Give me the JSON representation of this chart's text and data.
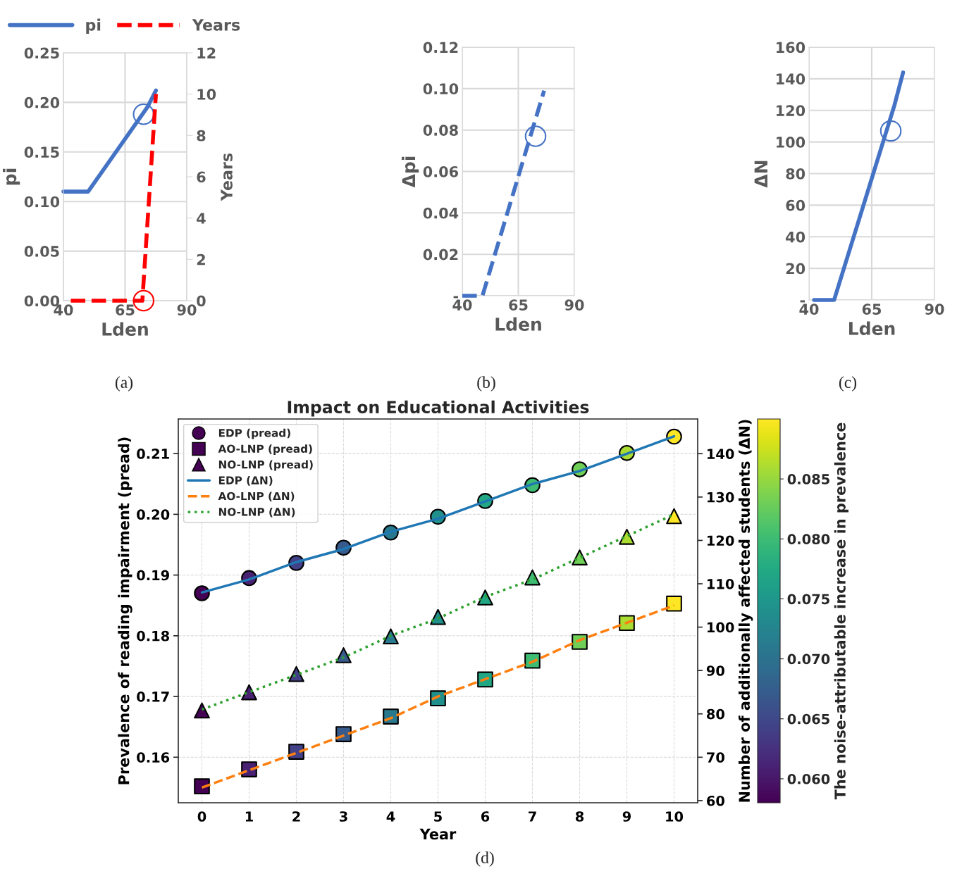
{
  "chart_data": [
    {
      "type": "line",
      "xlabel": "Lden",
      "ylabel": "pi",
      "y2label": "Years",
      "xlim": [
        40,
        90
      ],
      "xticks": [
        40,
        65,
        90
      ],
      "ylim": [
        0,
        0.25
      ],
      "yticks": [
        {
          "value": 0,
          "label": "0.00"
        },
        0.05,
        {
          "value": 0.1,
          "label": "0.10"
        },
        0.15,
        {
          "value": 0.2,
          "label": "0.20"
        },
        0.25
      ],
      "y2lim": [
        0,
        12
      ],
      "y2ticks": [
        0,
        2,
        4,
        6,
        8,
        10,
        12
      ],
      "grid": true,
      "legend": "top",
      "annotations": [
        "(a)"
      ],
      "series": [
        {
          "name": "pi",
          "type": "line",
          "color": "#4472c4",
          "line_style": "solid",
          "x": [
            40,
            50,
            74,
            77.5
          ],
          "values": [
            0.11,
            0.11,
            0.195,
            0.212
          ]
        },
        {
          "name": "Years",
          "type": "line",
          "axis": "y2",
          "color": "#ff0000",
          "line_style": "dashed",
          "x": [
            43,
            72,
            77.5
          ],
          "values": [
            0,
            0,
            10
          ]
        },
        {
          "type": "scatter",
          "marker": "circle",
          "color": "#4472c4",
          "x": [
            72.5
          ],
          "values": [
            0.188
          ]
        },
        {
          "type": "scatter",
          "axis": "y2",
          "marker": "circle",
          "color": "#ff0000",
          "x": [
            72.5
          ],
          "values": [
            0
          ]
        }
      ]
    },
    {
      "type": "line",
      "xlabel": "Lden",
      "ylabel": "Δpi",
      "xlim": [
        40,
        90
      ],
      "xticks": [
        40,
        65,
        90
      ],
      "ylim": [
        0,
        0.12
      ],
      "yticks": [
        {
          "value": 0,
          "label": "-"
        },
        0.02,
        0.04,
        0.06,
        0.08,
        {
          "value": 0.1,
          "label": "0.10"
        },
        0.12
      ],
      "grid": true,
      "annotations": [
        "(b)"
      ],
      "series": [
        {
          "type": "line",
          "color": "#4472c4",
          "line_style": "dashed",
          "x": [
            40,
            49,
            76.5
          ],
          "values": [
            0,
            0,
            0.099
          ]
        },
        {
          "type": "scatter",
          "marker": "circle",
          "color": "#4472c4",
          "x": [
            72.7
          ],
          "values": [
            0.077
          ]
        }
      ]
    },
    {
      "type": "line",
      "xlabel": "Lden",
      "ylabel": "ΔN",
      "xlim": [
        40,
        90
      ],
      "xticks": [
        40,
        65,
        90
      ],
      "ylim": [
        0,
        160
      ],
      "yticks": [
        {
          "value": 0,
          "label": "-"
        },
        20,
        40,
        60,
        80,
        100,
        120,
        140,
        160
      ],
      "grid": true,
      "annotations": [
        "(c)"
      ],
      "series": [
        {
          "type": "line",
          "color": "#4472c4",
          "line_style": "solid",
          "x": [
            42,
            48,
            50,
            74,
            77.5
          ],
          "values": [
            0,
            0,
            0,
            123,
            144
          ]
        },
        {
          "type": "scatter",
          "marker": "circle",
          "color": "#4472c4",
          "x": [
            72.6
          ],
          "values": [
            107
          ]
        }
      ]
    },
    {
      "type": "scatter",
      "title": "Impact on Educational Activities",
      "xlabel": "Year",
      "ylabel": "Prevalence of reading impairment (pread)",
      "y2label": "Number of additionally affected students (ΔN)",
      "clabel": "The noise-attributable increase in prevalence",
      "x": [
        0,
        1,
        2,
        3,
        4,
        5,
        6,
        7,
        8,
        9,
        10
      ],
      "xlim": [
        -0.5,
        10.5
      ],
      "xticks": [
        0,
        1,
        2,
        3,
        4,
        5,
        6,
        7,
        8,
        9,
        10
      ],
      "ylim": [
        0.1525,
        0.2157
      ],
      "yticks": [
        0.16,
        0.17,
        0.18,
        0.19,
        {
          "value": 0.2,
          "label": "0.20"
        },
        0.21
      ],
      "y2lim": [
        59.5,
        148
      ],
      "y2ticks": [
        60,
        70,
        80,
        90,
        100,
        110,
        120,
        130,
        140
      ],
      "clim": [
        0.058,
        0.09
      ],
      "cticks": [
        {
          "value": 0.06,
          "label": "0.060"
        },
        0.065,
        {
          "value": 0.07,
          "label": "0.070"
        },
        0.075,
        {
          "value": 0.08,
          "label": "0.080"
        },
        0.085
      ],
      "grid": true,
      "legend": "top left",
      "annotations": [
        "(d)"
      ],
      "series": [
        {
          "name": "EDP (pread)",
          "marker": "circle",
          "colors": [
            "#440154",
            "#482173",
            "#433e85",
            "#375b8d",
            "#297a8e",
            "#21918c",
            "#22a785",
            "#3fbc73",
            "#6ece58",
            "#addc30",
            "#fde725"
          ],
          "values": [
            0.187,
            0.1895,
            0.192,
            0.1945,
            0.197,
            0.1996,
            0.2022,
            0.2048,
            0.2074,
            0.2101,
            0.2128
          ],
          "cvalues": [
            0.058,
            0.061,
            0.064,
            0.067,
            0.071,
            0.074,
            0.077,
            0.08,
            0.083,
            0.086,
            0.09
          ]
        },
        {
          "name": "AO-LNP (pread)",
          "marker": "square",
          "colors": [
            "#440154",
            "#482173",
            "#433e85",
            "#375b8d",
            "#297a8e",
            "#21918c",
            "#22a785",
            "#3fbc73",
            "#6ece58",
            "#addc30",
            "#fde725"
          ],
          "values": [
            0.1552,
            0.158,
            0.1609,
            0.1638,
            0.1667,
            0.1697,
            0.1728,
            0.1759,
            0.179,
            0.1821,
            0.1853
          ],
          "cvalues": [
            0.058,
            0.061,
            0.064,
            0.067,
            0.071,
            0.074,
            0.077,
            0.08,
            0.083,
            0.086,
            0.09
          ]
        },
        {
          "name": "NO-LNP (pread)",
          "marker": "triangle",
          "colors": [
            "#440154",
            "#482173",
            "#433e85",
            "#375b8d",
            "#297a8e",
            "#21918c",
            "#22a785",
            "#3fbc73",
            "#6ece58",
            "#addc30",
            "#fde725"
          ],
          "values": [
            0.1677,
            0.1707,
            0.1737,
            0.1768,
            0.1799,
            0.1831,
            0.1863,
            0.1896,
            0.1929,
            0.1963,
            0.1997
          ],
          "cvalues": [
            0.058,
            0.061,
            0.064,
            0.067,
            0.071,
            0.074,
            0.077,
            0.08,
            0.083,
            0.086,
            0.09
          ]
        },
        {
          "name": "EDP (ΔN)",
          "type": "line",
          "axis": "y2",
          "color": "#1f77b4",
          "line_style": "solid",
          "values": [
            108,
            111,
            115,
            118,
            122,
            125,
            129,
            133,
            136,
            140,
            144
          ]
        },
        {
          "name": "AO-LNP (ΔN)",
          "type": "line",
          "axis": "y2",
          "color": "#ff7f0e",
          "line_style": "dashed",
          "values": [
            63,
            67,
            71,
            75,
            79,
            84,
            88,
            92,
            97,
            101,
            105
          ]
        },
        {
          "name": "NO-LNP (ΔN)",
          "type": "line",
          "axis": "y2",
          "color": "#2ca02c",
          "line_style": "dotted",
          "values": [
            81,
            85,
            89,
            93,
            98,
            102,
            107,
            111,
            116,
            121,
            126
          ]
        }
      ]
    }
  ]
}
